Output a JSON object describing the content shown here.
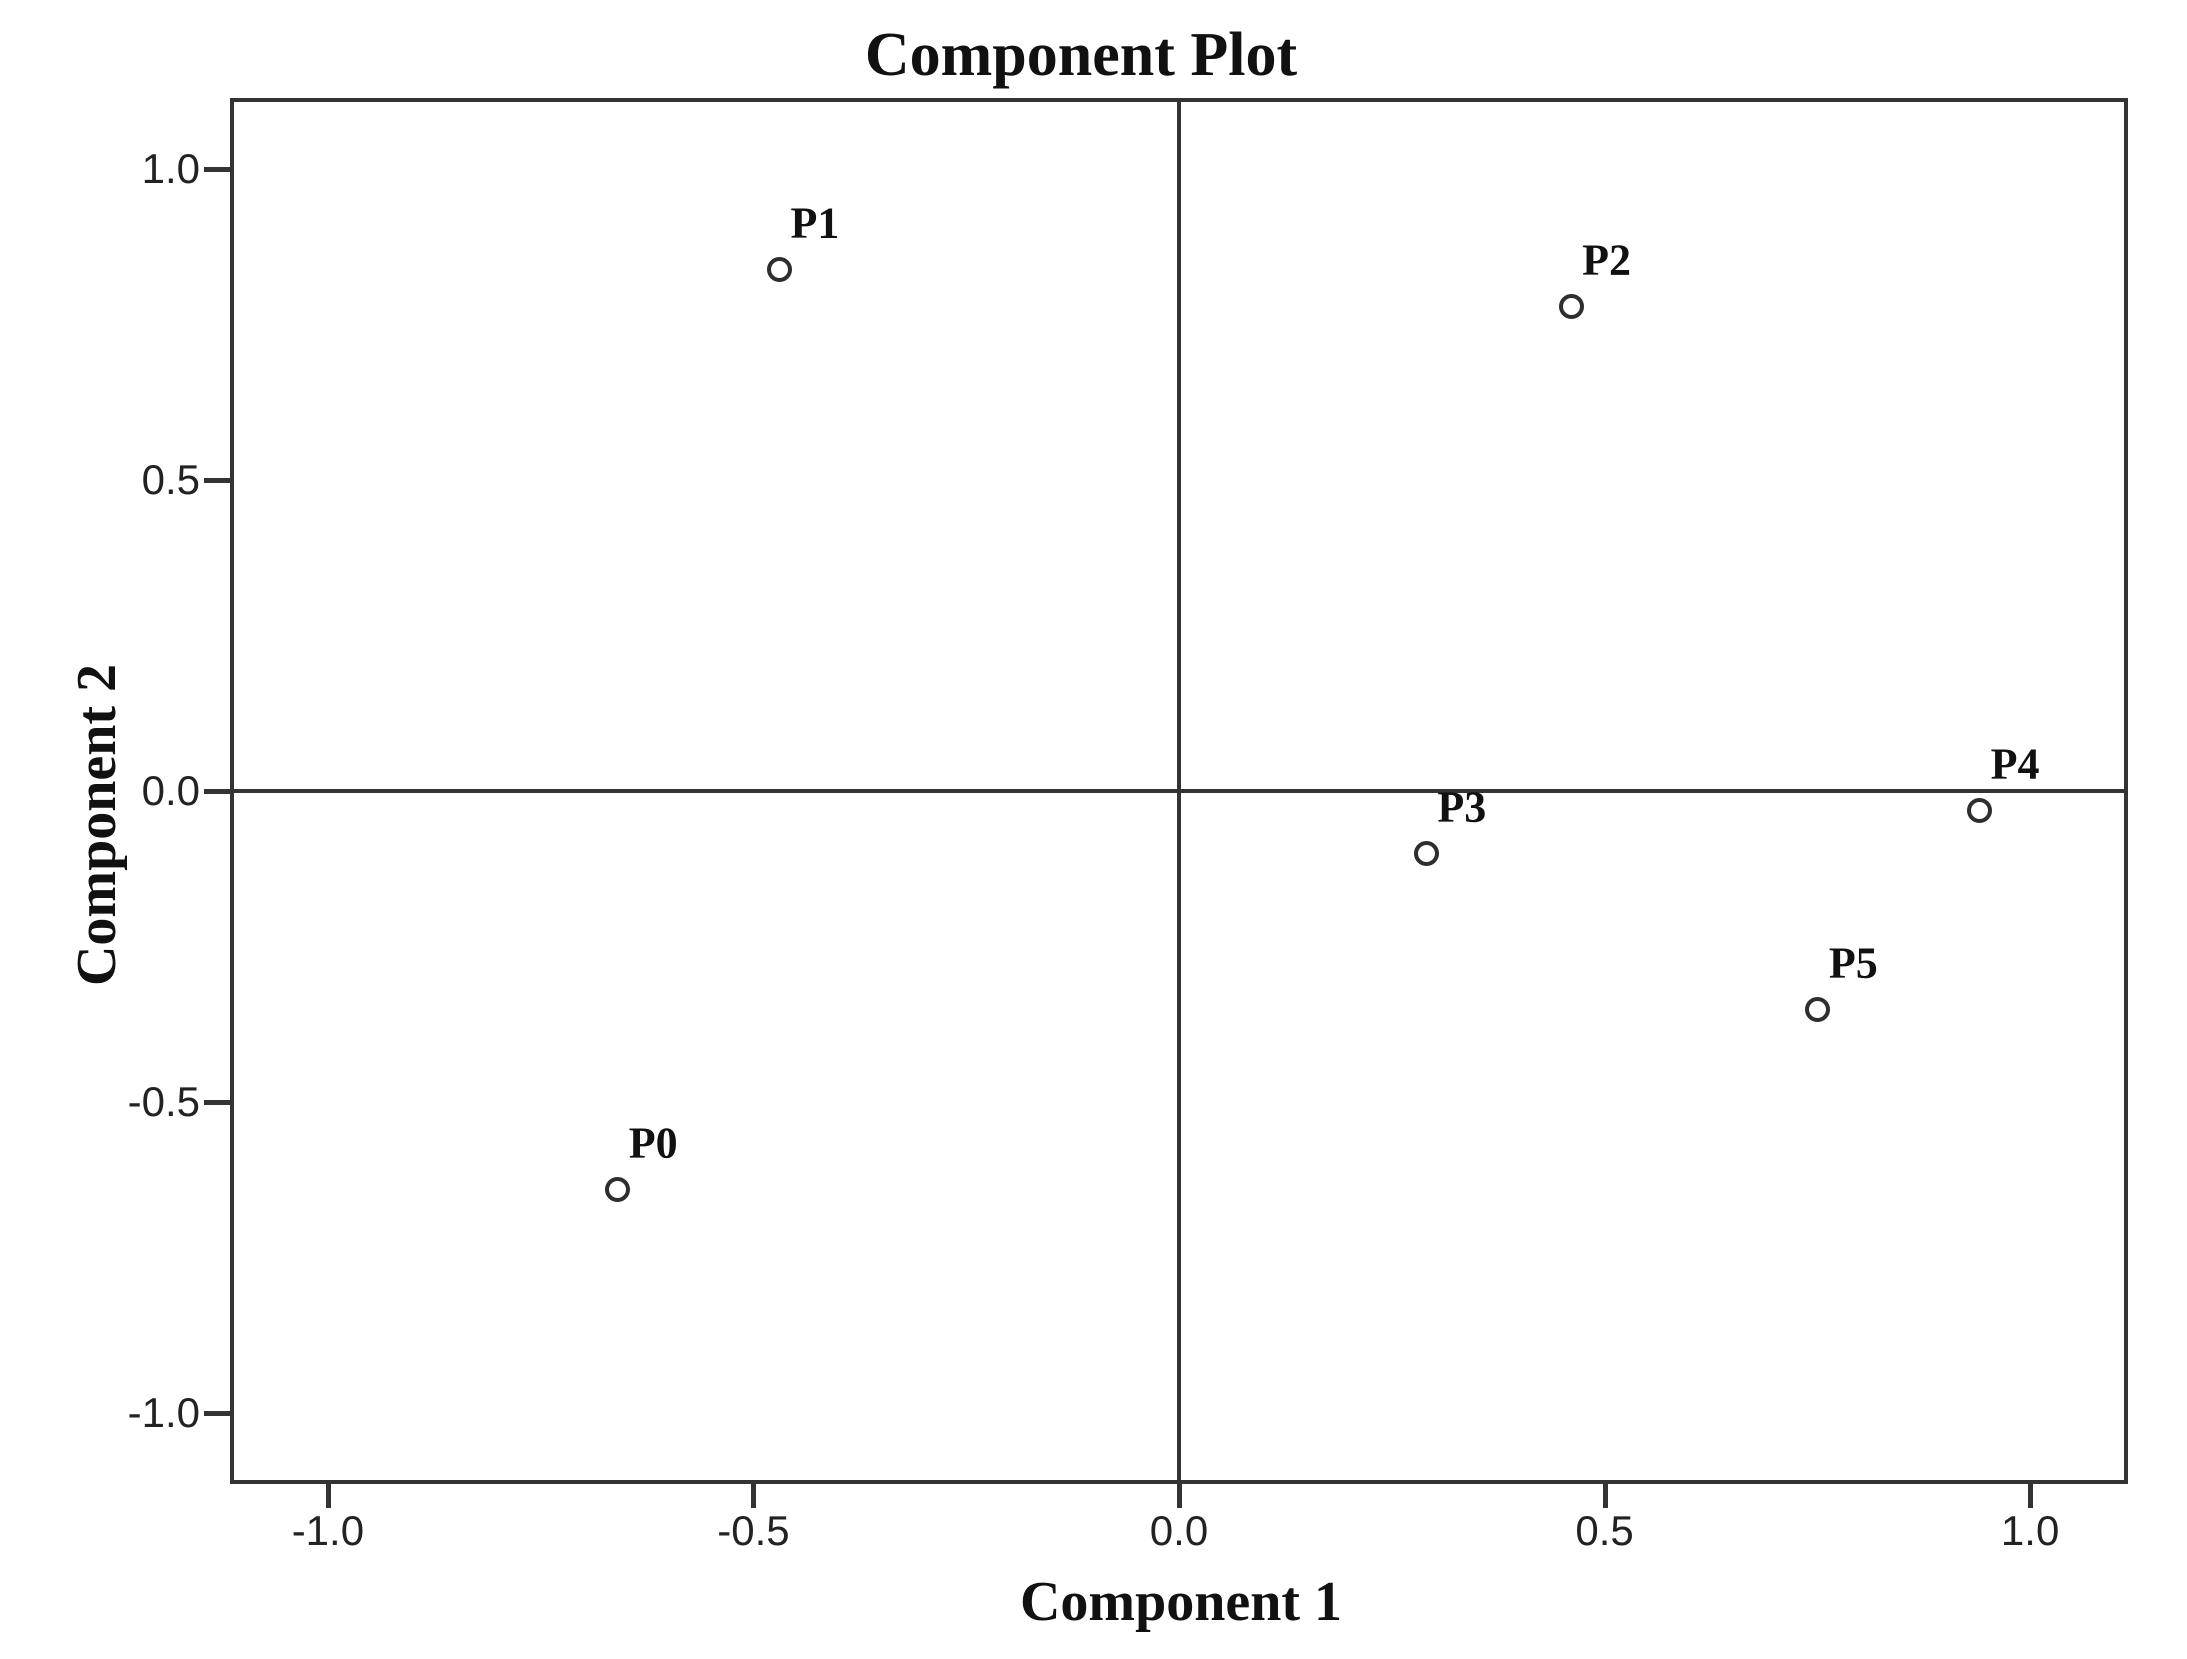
{
  "colors": {
    "background": "#ffffff",
    "axis_line": "#333333",
    "text": "#111111",
    "tick_text": "#222222",
    "marker_stroke": "#2e2e2e"
  },
  "chart_data": {
    "type": "scatter",
    "title": "Component Plot",
    "xlabel": "Component 1",
    "ylabel": "Component 2",
    "xlim": [
      -1.115,
      1.115
    ],
    "ylim": [
      -1.115,
      1.115
    ],
    "grid": false,
    "legend": false,
    "marker": "open-circle",
    "reference_lines": {
      "x": 0.0,
      "y": 0.0
    },
    "xticks": {
      "values": [
        -1.0,
        -0.5,
        0.0,
        0.5,
        1.0
      ],
      "labels": [
        "-1.0",
        "-0.5",
        "0.0",
        "0.5",
        "1.0"
      ]
    },
    "yticks": {
      "values": [
        -1.0,
        -0.5,
        0.0,
        0.5,
        1.0
      ],
      "labels": [
        "-1.0",
        "-0.5",
        "0.0",
        "0.5",
        "1.0"
      ]
    },
    "points": [
      {
        "label": "P0",
        "x": -0.66,
        "y": -0.64
      },
      {
        "label": "P1",
        "x": -0.47,
        "y": 0.84
      },
      {
        "label": "P2",
        "x": 0.46,
        "y": 0.78
      },
      {
        "label": "P3",
        "x": 0.29,
        "y": -0.1
      },
      {
        "label": "P4",
        "x": 0.94,
        "y": -0.03
      },
      {
        "label": "P5",
        "x": 0.75,
        "y": -0.35
      }
    ]
  }
}
